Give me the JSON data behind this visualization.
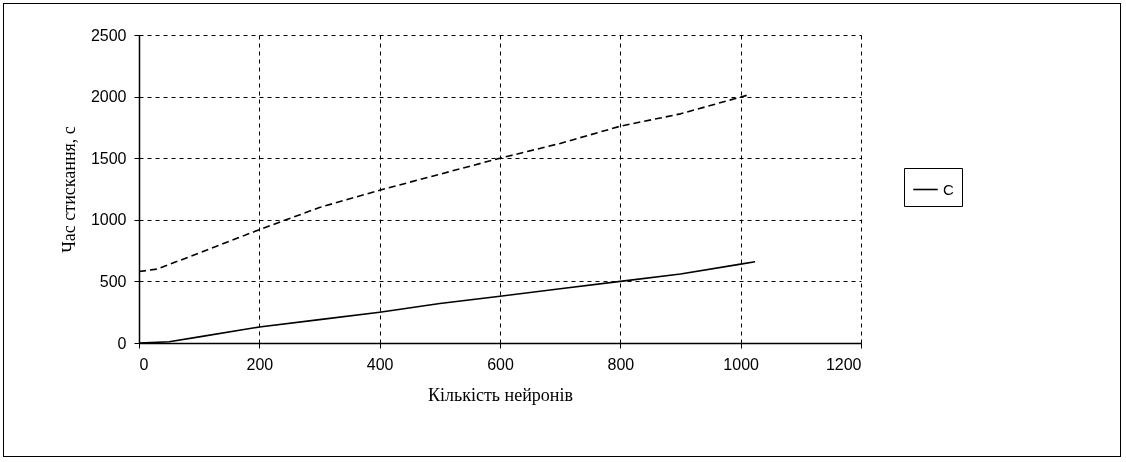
{
  "chart_data": {
    "type": "line",
    "xlabel": "Кількість нейронів",
    "ylabel": "Час стискання, с",
    "xlim": [
      0,
      1200
    ],
    "xticks": [
      0,
      200,
      400,
      600,
      800,
      1000,
      1200
    ],
    "ylim": [
      0,
      2500
    ],
    "yticks": [
      0,
      500,
      1000,
      1500,
      2000,
      2500
    ],
    "grid": true,
    "legend": "right",
    "marker": "none",
    "series": [
      {
        "name": "C",
        "color": "#000000",
        "line_style": "solid",
        "x": [
          0,
          50,
          100,
          200,
          300,
          400,
          500,
          600,
          700,
          800,
          900,
          1000,
          1024
        ],
        "values": [
          0,
          10,
          50,
          130,
          190,
          250,
          320,
          380,
          440,
          500,
          560,
          640,
          660
        ]
      },
      {
        "color": "#000000",
        "line_style": "dashed",
        "x": [
          0,
          30,
          100,
          200,
          300,
          400,
          500,
          600,
          700,
          800,
          900,
          1010
        ],
        "values": [
          580,
          600,
          730,
          920,
          1100,
          1240,
          1370,
          1500,
          1620,
          1760,
          1860,
          2010
        ]
      }
    ]
  }
}
